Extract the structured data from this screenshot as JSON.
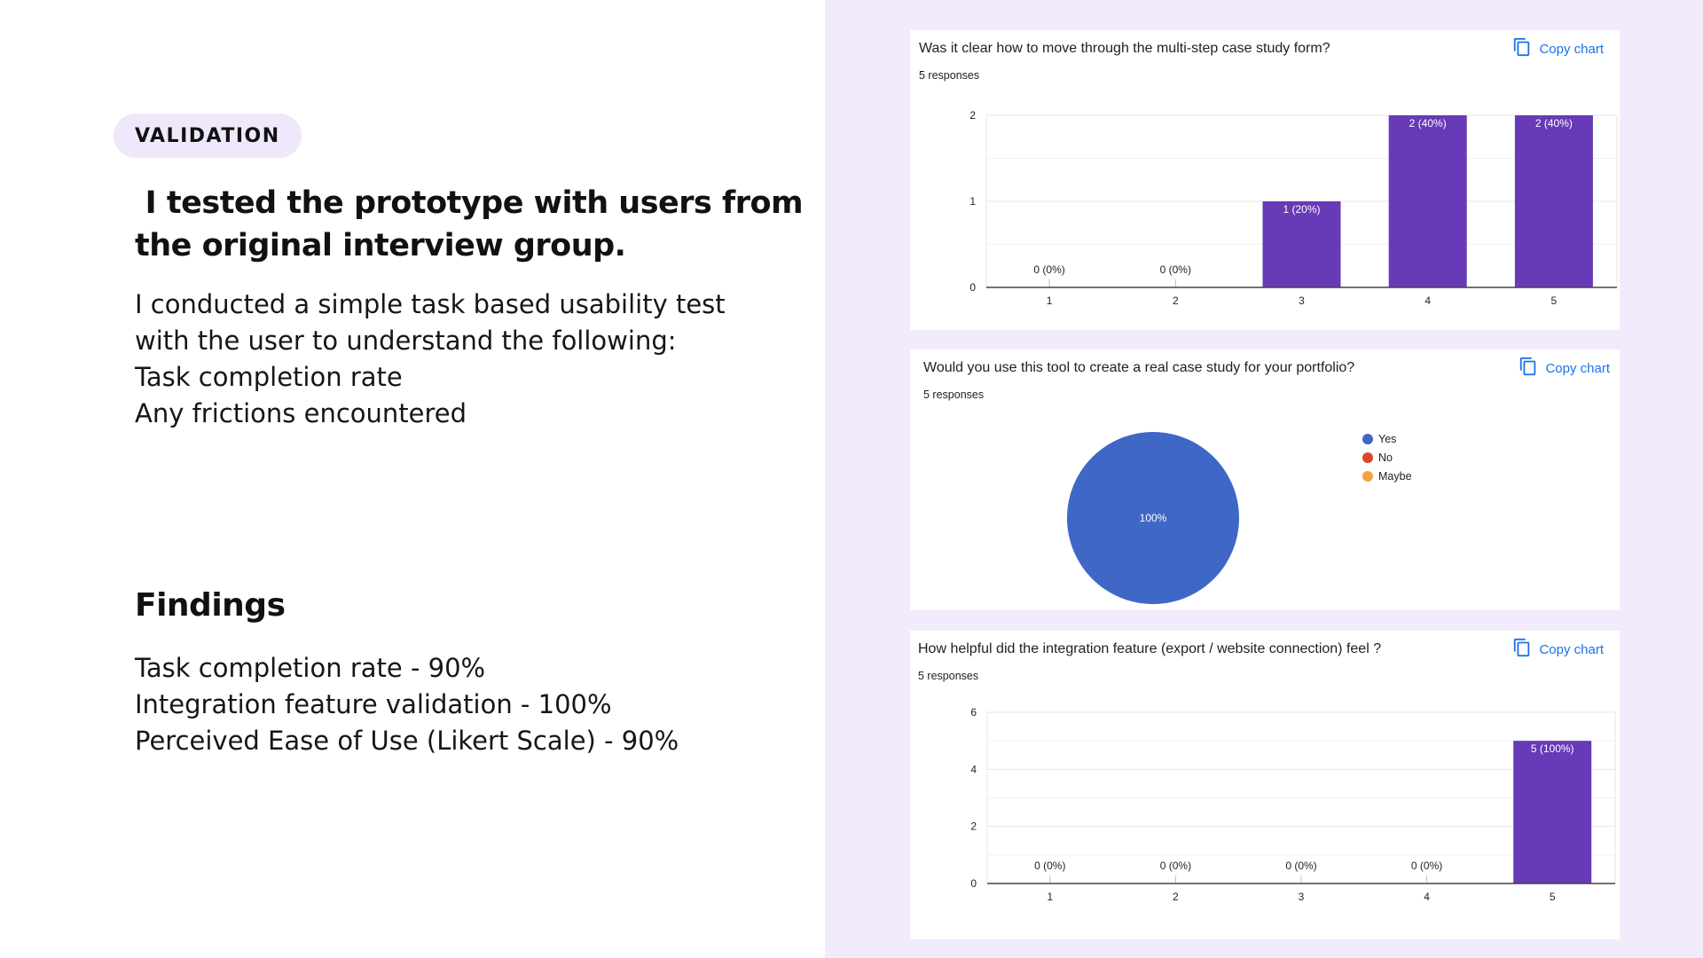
{
  "left": {
    "badge": "VALIDATION",
    "headline_line1": " I tested the prototype with users from",
    "headline_line2": "the original interview group.",
    "intro_lines": [
      "I conducted a simple task based usability test",
      "with the user to understand the following:",
      "Task completion rate",
      "Any frictions encountered"
    ],
    "findings_title": "Findings",
    "findings_lines": [
      "Task completion rate - 90%",
      "Integration feature validation - 100%",
      "Perceived Ease of Use (Likert Scale) - 90%"
    ]
  },
  "copy_label": "Copy chart",
  "colors": {
    "bar": "#673ab7",
    "pie_yes": "#3f67c6",
    "pie_no": "#d9482b",
    "pie_maybe": "#f4a23b",
    "accent": "#1a73e8"
  },
  "chart_data": [
    {
      "type": "bar",
      "title": "Was it clear how to move through the multi-step case study form?",
      "responses": "5 responses",
      "categories": [
        "1",
        "2",
        "3",
        "4",
        "5"
      ],
      "values": [
        0,
        0,
        1,
        2,
        2
      ],
      "labels": [
        "0 (0%)",
        "0 (0%)",
        "1 (20%)",
        "2 (40%)",
        "2 (40%)"
      ],
      "ylim": [
        0,
        2
      ],
      "yticks": [
        "0",
        "1",
        "2"
      ]
    },
    {
      "type": "pie",
      "title": "Would you use this tool to create a real case study for your portfolio?",
      "responses": "5 responses",
      "slices": [
        {
          "label": "Yes",
          "value": 100,
          "text": "100%"
        },
        {
          "label": "No",
          "value": 0
        },
        {
          "label": "Maybe",
          "value": 0
        }
      ]
    },
    {
      "type": "bar",
      "title": "How helpful did the integration feature (export / website connection) feel ?",
      "responses": "5 responses",
      "categories": [
        "1",
        "2",
        "3",
        "4",
        "5"
      ],
      "values": [
        0,
        0,
        0,
        0,
        5
      ],
      "labels": [
        "0 (0%)",
        "0 (0%)",
        "0 (0%)",
        "0 (0%)",
        "5 (100%)"
      ],
      "ylim": [
        0,
        6
      ],
      "yticks": [
        "0",
        "2",
        "4",
        "6"
      ]
    }
  ]
}
